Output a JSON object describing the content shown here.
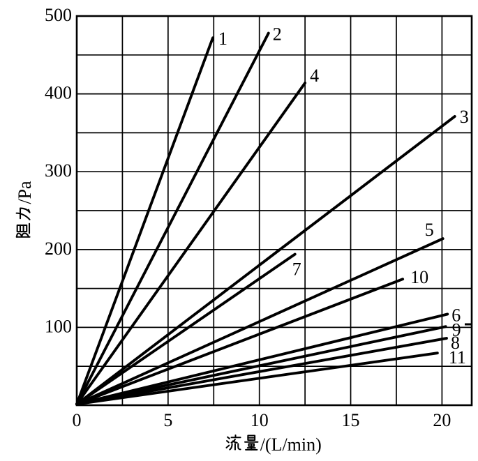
{
  "figure": {
    "background": "#ffffff",
    "line_color": "#000000"
  },
  "chart_data": {
    "type": "line",
    "title": "",
    "xlabel": "流量 /(L/min)",
    "ylabel": "阻力/Pa",
    "xlim": [
      0,
      21.6
    ],
    "ylim": [
      0,
      500
    ],
    "x_ticks": [
      0,
      5,
      10,
      15,
      20
    ],
    "y_ticks": [
      100,
      200,
      300,
      400,
      500
    ],
    "grid": {
      "on": true,
      "x_step": 2.5,
      "y_step": 50
    },
    "legend": "labels at line tips",
    "series": [
      {
        "label": "1",
        "points": [
          [
            0,
            0
          ],
          [
            7.45,
            472
          ]
        ],
        "slope_pa_per_L_min": 63.4
      },
      {
        "label": "2",
        "points": [
          [
            0,
            0
          ],
          [
            10.5,
            478
          ]
        ],
        "slope_pa_per_L_min": 45.5
      },
      {
        "label": "3",
        "points": [
          [
            0,
            0
          ],
          [
            20.7,
            371
          ]
        ],
        "slope_pa_per_L_min": 17.9
      },
      {
        "label": "4",
        "points": [
          [
            0,
            0
          ],
          [
            12.5,
            414
          ]
        ],
        "slope_pa_per_L_min": 33.1
      },
      {
        "label": "5",
        "points": [
          [
            0,
            0
          ],
          [
            20.05,
            214
          ]
        ],
        "slope_pa_per_L_min": 10.7
      },
      {
        "label": "6",
        "points": [
          [
            0,
            0
          ],
          [
            20.3,
            117
          ]
        ],
        "slope_pa_per_L_min": 5.8
      },
      {
        "label": "7",
        "points": [
          [
            0,
            0
          ],
          [
            11.95,
            194
          ]
        ],
        "slope_pa_per_L_min": 16.2
      },
      {
        "label": "8",
        "points": [
          [
            0,
            0
          ],
          [
            20.25,
            86
          ]
        ],
        "slope_pa_per_L_min": 4.2
      },
      {
        "label": "9",
        "points": [
          [
            0,
            0
          ],
          [
            20.2,
            101
          ]
        ],
        "slope_pa_per_L_min": 5.0
      },
      {
        "label": "10",
        "points": [
          [
            0,
            0
          ],
          [
            17.85,
            162
          ]
        ],
        "slope_pa_per_L_min": 9.1
      },
      {
        "label": "11",
        "points": [
          [
            0,
            0
          ],
          [
            19.75,
            67
          ]
        ],
        "slope_pa_per_L_min": 3.4
      }
    ]
  }
}
